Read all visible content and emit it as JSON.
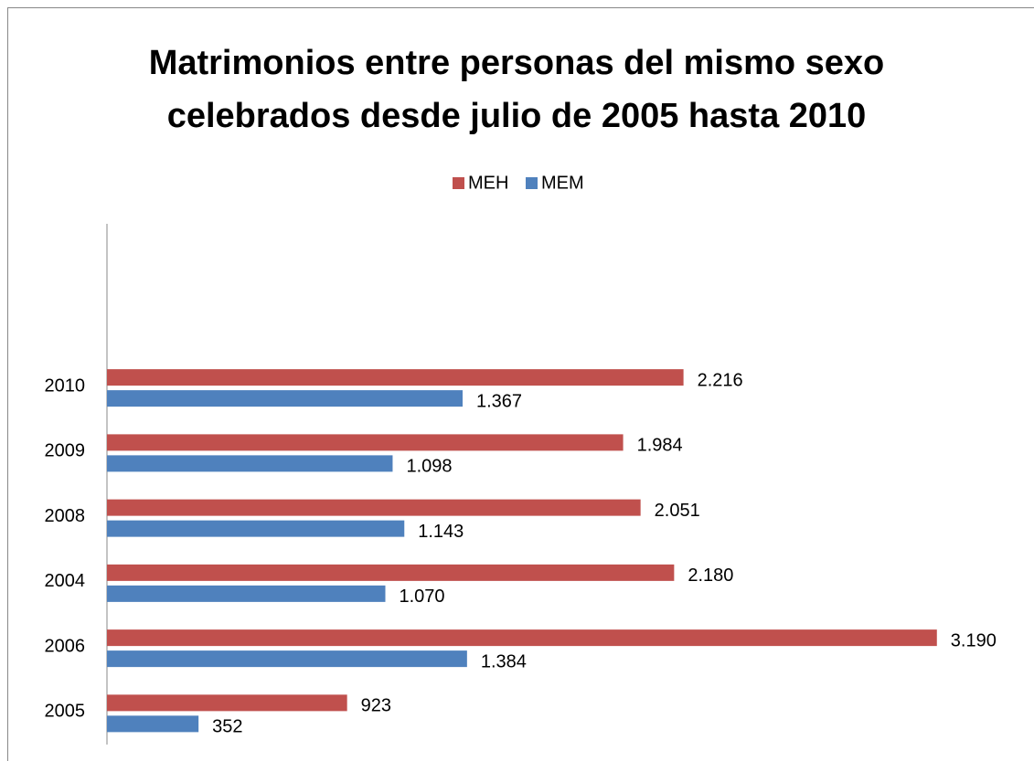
{
  "chart_data": {
    "type": "bar",
    "orientation": "horizontal",
    "title": "Matrimonios entre personas del mismo sexo celebrados desde julio de 2005 hasta 2010",
    "categories": [
      "2005",
      "2006",
      "2004",
      "2008",
      "2009",
      "2010",
      null,
      null
    ],
    "series": [
      {
        "name": "MEH",
        "color": "#c0504d",
        "values": [
          923,
          3190,
          2180,
          2051,
          1984,
          2216,
          null,
          null
        ],
        "value_labels": [
          "923",
          "3.190",
          "2.180",
          "2.051",
          "1.984",
          "2.216",
          null,
          null
        ]
      },
      {
        "name": "MEM",
        "color": "#4f81bd",
        "values": [
          352,
          1384,
          1070,
          1143,
          1098,
          1367,
          null,
          null
        ],
        "value_labels": [
          "352",
          "1.384",
          "1.070",
          "1.143",
          "1.098",
          "1.367",
          null,
          null
        ]
      }
    ],
    "xlim": [
      0,
      3500
    ],
    "legend": "top"
  }
}
